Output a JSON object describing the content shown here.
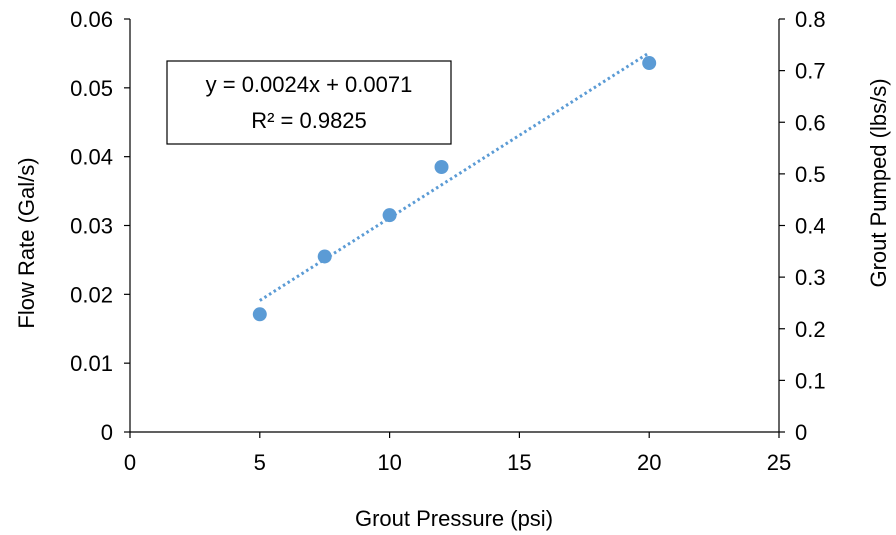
{
  "chart_data": {
    "type": "scatter",
    "xlabel": "Grout Pressure (psi)",
    "ylabel": "Flow Rate (Gal/s)",
    "y2label": "Grout Pumped (lbs/s)",
    "xlim": [
      0,
      25
    ],
    "ylim": [
      0,
      0.06
    ],
    "y2lim": [
      0,
      0.8
    ],
    "x_ticks": [
      "0",
      "5",
      "10",
      "15",
      "20",
      "25"
    ],
    "y_ticks": [
      "0",
      "0.01",
      "0.02",
      "0.03",
      "0.04",
      "0.05",
      "0.06"
    ],
    "y2_ticks": [
      "0",
      "0.1",
      "0.2",
      "0.3",
      "0.4",
      "0.5",
      "0.6",
      "0.7",
      "0.8"
    ],
    "grid": false,
    "series": [
      {
        "x": [
          5,
          7.5,
          10,
          12,
          20
        ],
        "y": [
          0.0171,
          0.0255,
          0.0315,
          0.0385,
          0.0536
        ],
        "color": "#5b9bd5"
      }
    ],
    "trendline": {
      "type": "linear",
      "slope": 0.0024,
      "intercept": 0.0071,
      "x_range": [
        5,
        20
      ],
      "style": "dotted",
      "color": "#5b9bd5"
    },
    "annotation": {
      "line1": "y = 0.0024x + 0.0071",
      "line2": "R² = 0.9825"
    }
  }
}
